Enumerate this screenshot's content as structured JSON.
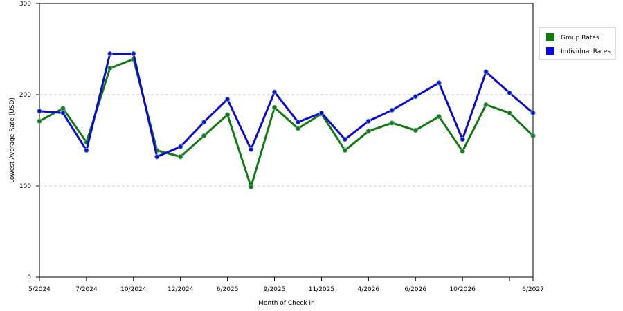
{
  "chart_data": {
    "type": "line",
    "x_label": "Month of Check In",
    "y_label": "Lowest Average Rate (USD)",
    "categories": [
      "5/2024",
      null,
      "7/2024",
      null,
      "10/2024",
      null,
      "12/2024",
      null,
      "6/2025",
      null,
      "9/2025",
      null,
      "11/2025",
      null,
      "4/2026",
      null,
      "6/2026",
      null,
      "10/2026",
      null,
      null,
      "6/2027"
    ],
    "series": [
      {
        "name": "Group Rates",
        "color": "#117a11",
        "values": [
          171,
          185,
          148,
          229,
          239,
          139,
          132,
          155,
          178,
          99,
          186,
          163,
          179,
          139,
          160,
          169,
          161,
          176,
          138,
          189,
          180,
          155
        ]
      },
      {
        "name": "Individual Rates",
        "color": "#0a0ad8",
        "values": [
          182,
          180,
          139,
          245,
          245,
          132,
          143,
          170,
          195,
          140,
          203,
          170,
          180,
          151,
          171,
          183,
          198,
          213,
          151,
          225,
          202,
          180
        ]
      }
    ],
    "ylim": [
      0,
      300
    ],
    "yticks": [
      0,
      100,
      200,
      300
    ],
    "grid": true
  }
}
